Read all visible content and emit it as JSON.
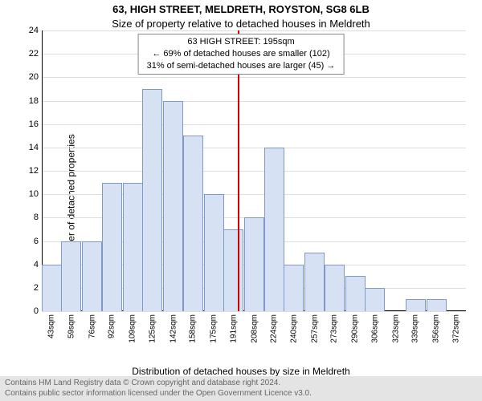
{
  "title_line1": "63, HIGH STREET, MELDRETH, ROYSTON, SG8 6LB",
  "title_line2": "Size of property relative to detached houses in Meldreth",
  "annotation": {
    "line1": "63 HIGH STREET: 195sqm",
    "line2": "← 69% of detached houses are smaller (102)",
    "line3": "31% of semi-detached houses are larger (45) →"
  },
  "ylabel": "Number of detached properties",
  "xlabel": "Distribution of detached houses by size in Meldreth",
  "footer_line1": "Contains HM Land Registry data © Crown copyright and database right 2024.",
  "footer_line2": "Contains public sector information licensed under the Open Government Licence v3.0.",
  "chart": {
    "type": "histogram",
    "ylim": [
      0,
      24
    ],
    "ytick_step": 2,
    "vline_x": 195,
    "vline_color": "#d40000",
    "bar_fill": "#d6e1f3",
    "bar_stroke": "#7d98c9",
    "grid_color": "#dddddd",
    "background_color": "#ffffff",
    "x_min": 35,
    "x_max": 380,
    "categories": [
      "43sqm",
      "59sqm",
      "76sqm",
      "92sqm",
      "109sqm",
      "125sqm",
      "142sqm",
      "158sqm",
      "175sqm",
      "191sqm",
      "208sqm",
      "224sqm",
      "240sqm",
      "257sqm",
      "273sqm",
      "290sqm",
      "306sqm",
      "323sqm",
      "339sqm",
      "356sqm",
      "372sqm"
    ],
    "x_centers": [
      43,
      59,
      76,
      92,
      109,
      125,
      142,
      158,
      175,
      191,
      208,
      224,
      240,
      257,
      273,
      290,
      306,
      323,
      339,
      356,
      372
    ],
    "values": [
      4,
      6,
      6,
      11,
      11,
      19,
      18,
      15,
      10,
      7,
      8,
      14,
      4,
      5,
      4,
      3,
      2,
      0,
      1,
      1,
      0
    ],
    "bar_unit_width": 16.5
  }
}
